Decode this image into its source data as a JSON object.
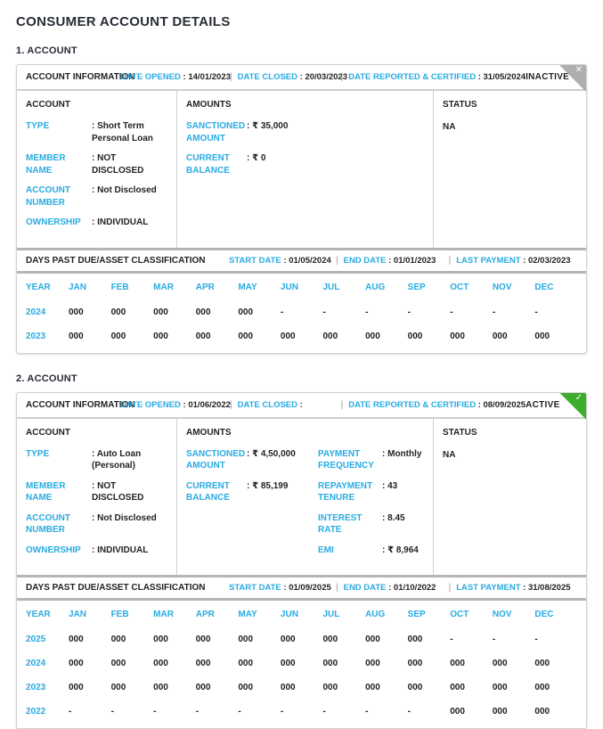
{
  "page": {
    "title": "CONSUMER ACCOUNT DETAILS"
  },
  "colors": {
    "accent": "#29abe2",
    "active_green": "#3dae2b",
    "inactive_gray": "#aeaeae"
  },
  "year_col": "YEAR",
  "months": [
    "JAN",
    "FEB",
    "MAR",
    "APR",
    "MAY",
    "JUN",
    "JUL",
    "AUG",
    "SEP",
    "OCT",
    "NOV",
    "DEC"
  ],
  "accounts": [
    {
      "section_label": "1. ACCOUNT",
      "header": {
        "title": "ACCOUNT INFORMATION",
        "dates": [
          {
            "label": "DATE OPENED",
            "value": "14/01/2023"
          },
          {
            "label": "DATE CLOSED",
            "value": "20/03/2023"
          },
          {
            "label": "DATE REPORTED & CERTIFIED",
            "value": "31/05/2024"
          }
        ],
        "status_badge": "INACTIVE",
        "ribbon": "close"
      },
      "account": {
        "title": "ACCOUNT",
        "fields": [
          {
            "label": "TYPE",
            "value": "Short Term Personal Loan"
          },
          {
            "label": "MEMBER NAME",
            "value": "NOT DISCLOSED"
          },
          {
            "label": "ACCOUNT NUMBER",
            "value": "Not Disclosed"
          },
          {
            "label": "OWNERSHIP",
            "value": "INDIVIDUAL"
          }
        ]
      },
      "amounts": {
        "title": "AMOUNTS",
        "col1": [
          {
            "label": "SANCTIONED AMOUNT",
            "value": "₹ 35,000"
          },
          {
            "label": "CURRENT BALANCE",
            "value": "₹ 0"
          }
        ],
        "col2": []
      },
      "status": {
        "title": "STATUS",
        "value": "NA"
      },
      "dpd": {
        "title": "DAYS PAST DUE/ASSET CLASSIFICATION",
        "dates": [
          {
            "label": "START DATE",
            "value": "01/05/2024"
          },
          {
            "label": "END DATE",
            "value": "01/01/2023"
          },
          {
            "label": "LAST PAYMENT",
            "value": "02/03/2023"
          }
        ],
        "rows": [
          {
            "year": "2024",
            "values": [
              "000",
              "000",
              "000",
              "000",
              "000",
              "-",
              "-",
              "-",
              "-",
              "-",
              "-",
              "-"
            ]
          },
          {
            "year": "2023",
            "values": [
              "000",
              "000",
              "000",
              "000",
              "000",
              "000",
              "000",
              "000",
              "000",
              "000",
              "000",
              "000"
            ]
          }
        ]
      }
    },
    {
      "section_label": "2. ACCOUNT",
      "header": {
        "title": "ACCOUNT INFORMATION",
        "dates": [
          {
            "label": "DATE OPENED",
            "value": "01/06/2022"
          },
          {
            "label": "DATE CLOSED",
            "value": ""
          },
          {
            "label": "DATE REPORTED & CERTIFIED",
            "value": "08/09/2025"
          }
        ],
        "status_badge": "ACTIVE",
        "ribbon": "check"
      },
      "account": {
        "title": "ACCOUNT",
        "fields": [
          {
            "label": "TYPE",
            "value": "Auto Loan (Personal)"
          },
          {
            "label": "MEMBER NAME",
            "value": "NOT DISCLOSED"
          },
          {
            "label": "ACCOUNT NUMBER",
            "value": "Not Disclosed"
          },
          {
            "label": "OWNERSHIP",
            "value": "INDIVIDUAL"
          }
        ]
      },
      "amounts": {
        "title": "AMOUNTS",
        "col1": [
          {
            "label": "SANCTIONED AMOUNT",
            "value": "₹ 4,50,000"
          },
          {
            "label": "CURRENT BALANCE",
            "value": "₹ 85,199"
          }
        ],
        "col2": [
          {
            "label": "PAYMENT FREQUENCY",
            "value": "Monthly"
          },
          {
            "label": "REPAYMENT TENURE",
            "value": "43"
          },
          {
            "label": "INTEREST RATE",
            "value": "8.45"
          },
          {
            "label": "EMI",
            "value": "₹ 8,964"
          }
        ]
      },
      "status": {
        "title": "STATUS",
        "value": "NA"
      },
      "dpd": {
        "title": "DAYS PAST DUE/ASSET CLASSIFICATION",
        "dates": [
          {
            "label": "START DATE",
            "value": "01/09/2025"
          },
          {
            "label": "END DATE",
            "value": "01/10/2022"
          },
          {
            "label": "LAST PAYMENT",
            "value": "31/08/2025"
          }
        ],
        "rows": [
          {
            "year": "2025",
            "values": [
              "000",
              "000",
              "000",
              "000",
              "000",
              "000",
              "000",
              "000",
              "000",
              "-",
              "-",
              "-"
            ]
          },
          {
            "year": "2024",
            "values": [
              "000",
              "000",
              "000",
              "000",
              "000",
              "000",
              "000",
              "000",
              "000",
              "000",
              "000",
              "000"
            ]
          },
          {
            "year": "2023",
            "values": [
              "000",
              "000",
              "000",
              "000",
              "000",
              "000",
              "000",
              "000",
              "000",
              "000",
              "000",
              "000"
            ]
          },
          {
            "year": "2022",
            "values": [
              "-",
              "-",
              "-",
              "-",
              "-",
              "-",
              "-",
              "-",
              "-",
              "000",
              "000",
              "000"
            ]
          }
        ]
      }
    }
  ]
}
